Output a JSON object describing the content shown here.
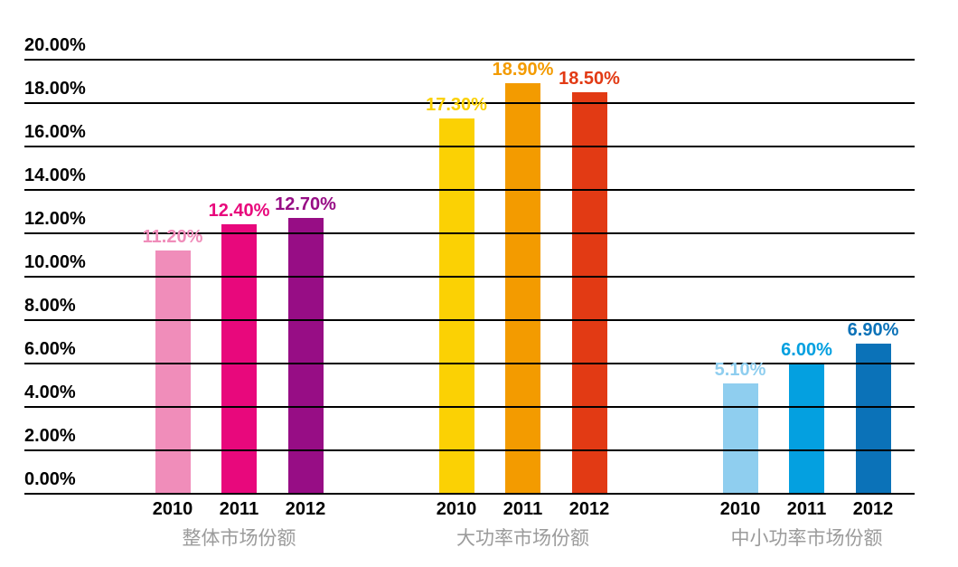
{
  "chart_data": {
    "type": "bar",
    "title": "",
    "xlabel": "",
    "ylabel": "",
    "ylim": [
      0,
      20
    ],
    "ytick_step": 2,
    "ytick_labels": [
      "20.00%",
      "18.00%",
      "16.00%",
      "14.00%",
      "12.00%",
      "10.00%",
      "8.00%",
      "6.00%",
      "4.00%",
      "2.00%",
      "0.00%"
    ],
    "categories": [
      "2010",
      "2011",
      "2012"
    ],
    "groups": [
      {
        "label": "整体市场份额",
        "values": [
          11.2,
          12.4,
          12.7
        ],
        "value_labels": [
          "11.20%",
          "12.40%",
          "12.70%"
        ],
        "colors": [
          "#F08DBA",
          "#E8087C",
          "#970D85"
        ]
      },
      {
        "label": "大功率市场份额",
        "values": [
          17.3,
          18.9,
          18.5
        ],
        "value_labels": [
          "17.30%",
          "18.90%",
          "18.50%"
        ],
        "colors": [
          "#FBD104",
          "#F39B00",
          "#E23A14"
        ]
      },
      {
        "label": "中小功率市场份额",
        "values": [
          5.1,
          6.0,
          6.9
        ],
        "value_labels": [
          "5.10%",
          "6.00%",
          "6.90%"
        ],
        "colors": [
          "#8FCEEF",
          "#04A0E0",
          "#0B72B8"
        ]
      }
    ],
    "grid": true,
    "gridline_color": "#000000",
    "legend": false,
    "axis_text_color": "#000000",
    "group_label_color": "#9B9B9B",
    "background": "#FFFFFF"
  }
}
